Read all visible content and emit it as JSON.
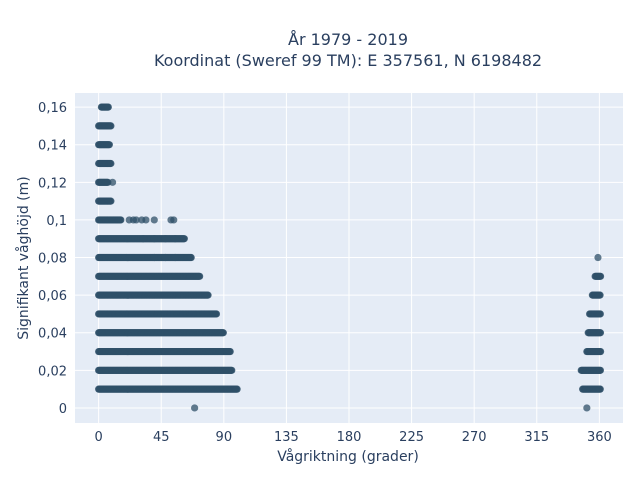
{
  "chart_data": {
    "type": "scatter",
    "title_line1": "År 1979 - 2019",
    "title_line2": "Koordinat (Sweref 99 TM): E 357561, N 6198482",
    "xlabel": "Vågriktning (grader)",
    "ylabel": "Signifikant våghöjd (m)",
    "xlim": [
      -17,
      377
    ],
    "ylim": [
      -0.008,
      0.1675
    ],
    "x_ticks": [
      0,
      45,
      90,
      135,
      180,
      225,
      270,
      315,
      360
    ],
    "x_tick_labels": [
      "0",
      "45",
      "90",
      "135",
      "180",
      "225",
      "270",
      "315",
      "360"
    ],
    "y_ticks": [
      0,
      0.02,
      0.04,
      0.06,
      0.08,
      0.1,
      0.12,
      0.14,
      0.16
    ],
    "y_tick_labels": [
      "0",
      "0,02",
      "0,04",
      "0,06",
      "0,08",
      "0,1",
      "0,12",
      "0,14",
      "0,16"
    ],
    "grid": true,
    "marker_color": "#2f5068",
    "plot_background": "#e5ecf6",
    "bands": [
      {
        "y": 0.01,
        "x_from": 0,
        "x_to": 100
      },
      {
        "y": 0.01,
        "x_from": 348,
        "x_to": 361
      },
      {
        "y": 0.02,
        "x_from": 0,
        "x_to": 96
      },
      {
        "y": 0.02,
        "x_from": 347,
        "x_to": 361
      },
      {
        "y": 0.03,
        "x_from": 0,
        "x_to": 95
      },
      {
        "y": 0.03,
        "x_from": 351,
        "x_to": 361
      },
      {
        "y": 0.04,
        "x_from": 0,
        "x_to": 90
      },
      {
        "y": 0.04,
        "x_from": 352,
        "x_to": 361
      },
      {
        "y": 0.05,
        "x_from": 0,
        "x_to": 85
      },
      {
        "y": 0.05,
        "x_from": 353,
        "x_to": 361
      },
      {
        "y": 0.06,
        "x_from": 0,
        "x_to": 79
      },
      {
        "y": 0.06,
        "x_from": 355,
        "x_to": 361
      },
      {
        "y": 0.07,
        "x_from": 0,
        "x_to": 73
      },
      {
        "y": 0.07,
        "x_from": 357,
        "x_to": 361
      },
      {
        "y": 0.08,
        "x_from": 0,
        "x_to": 67
      },
      {
        "y": 0.09,
        "x_from": 0,
        "x_to": 62
      },
      {
        "y": 0.1,
        "x_from": 0,
        "x_to": 16
      },
      {
        "y": 0.11,
        "x_from": 0,
        "x_to": 9
      },
      {
        "y": 0.12,
        "x_from": 0,
        "x_to": 7
      },
      {
        "y": 0.13,
        "x_from": 0,
        "x_to": 9
      },
      {
        "y": 0.14,
        "x_from": 0,
        "x_to": 8
      },
      {
        "y": 0.15,
        "x_from": 0,
        "x_to": 9
      },
      {
        "y": 0.16,
        "x_from": 2,
        "x_to": 7
      }
    ],
    "points": [
      [
        69,
        0
      ],
      [
        351,
        0
      ],
      [
        359,
        0.08
      ],
      [
        10,
        0.12
      ],
      [
        22,
        0.1
      ],
      [
        25,
        0.1
      ],
      [
        27,
        0.1
      ],
      [
        31,
        0.1
      ],
      [
        34,
        0.1
      ],
      [
        40,
        0.1
      ],
      [
        52,
        0.1
      ],
      [
        54,
        0.1
      ],
      [
        32,
        0.09
      ],
      [
        40,
        0.09
      ],
      [
        48,
        0.09
      ],
      [
        55,
        0.09
      ],
      [
        40,
        0.08
      ],
      [
        48,
        0.08
      ],
      [
        55,
        0.08
      ]
    ]
  }
}
